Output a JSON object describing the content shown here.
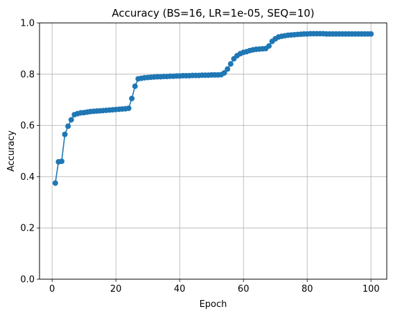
{
  "chart_data": {
    "type": "line",
    "title": "Accuracy (BS=16, LR=1e-05, SEQ=10)",
    "xlabel": "Epoch",
    "ylabel": "Accuracy",
    "xlim": [
      -3.95,
      104.95
    ],
    "ylim": [
      0.0,
      1.0
    ],
    "xticks": [
      0,
      20,
      40,
      60,
      80,
      100
    ],
    "yticks": [
      0.0,
      0.2,
      0.4,
      0.6,
      0.8,
      1.0
    ],
    "xtick_labels": [
      "0",
      "20",
      "40",
      "60",
      "80",
      "100"
    ],
    "ytick_labels": [
      "0.0",
      "0.2",
      "0.4",
      "0.6",
      "0.8",
      "1.0"
    ],
    "grid": true,
    "series": [
      {
        "color": "#1f77b4",
        "marker": "circle",
        "x": [
          1,
          2,
          3,
          4,
          5,
          6,
          7,
          8,
          9,
          10,
          11,
          12,
          13,
          14,
          15,
          16,
          17,
          18,
          19,
          20,
          21,
          22,
          23,
          24,
          25,
          26,
          27,
          28,
          29,
          30,
          31,
          32,
          33,
          34,
          35,
          36,
          37,
          38,
          39,
          40,
          41,
          42,
          43,
          44,
          45,
          46,
          47,
          48,
          49,
          50,
          51,
          52,
          53,
          54,
          55,
          56,
          57,
          58,
          59,
          60,
          61,
          62,
          63,
          64,
          65,
          66,
          67,
          68,
          69,
          70,
          71,
          72,
          73,
          74,
          75,
          76,
          77,
          78,
          79,
          80,
          81,
          82,
          83,
          84,
          85,
          86,
          87,
          88,
          89,
          90,
          91,
          92,
          93,
          94,
          95,
          96,
          97,
          98,
          99,
          100
        ],
        "y": [
          0.375,
          0.458,
          0.46,
          0.565,
          0.597,
          0.622,
          0.642,
          0.646,
          0.649,
          0.65,
          0.652,
          0.654,
          0.655,
          0.656,
          0.657,
          0.658,
          0.659,
          0.66,
          0.661,
          0.662,
          0.663,
          0.664,
          0.665,
          0.667,
          0.705,
          0.753,
          0.782,
          0.784,
          0.786,
          0.787,
          0.788,
          0.789,
          0.79,
          0.79,
          0.791,
          0.791,
          0.792,
          0.792,
          0.793,
          0.793,
          0.794,
          0.794,
          0.794,
          0.795,
          0.795,
          0.795,
          0.796,
          0.796,
          0.796,
          0.797,
          0.797,
          0.797,
          0.798,
          0.805,
          0.82,
          0.84,
          0.86,
          0.872,
          0.88,
          0.885,
          0.888,
          0.892,
          0.895,
          0.897,
          0.898,
          0.899,
          0.9,
          0.91,
          0.928,
          0.938,
          0.945,
          0.948,
          0.95,
          0.952,
          0.953,
          0.954,
          0.955,
          0.956,
          0.957,
          0.957,
          0.958,
          0.958,
          0.958,
          0.958,
          0.958,
          0.957,
          0.957,
          0.957,
          0.957,
          0.957,
          0.957,
          0.957,
          0.957,
          0.957,
          0.957,
          0.957,
          0.957,
          0.957,
          0.957,
          0.957
        ]
      }
    ]
  }
}
